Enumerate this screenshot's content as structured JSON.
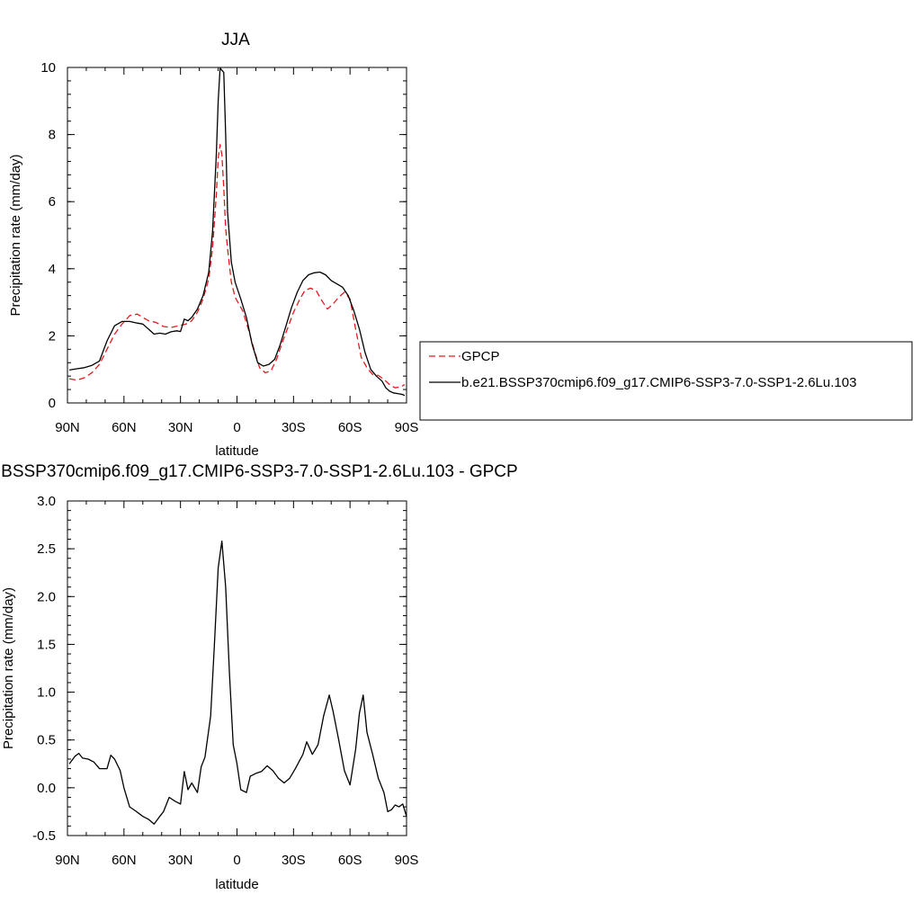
{
  "chart_data": [
    {
      "type": "line",
      "title": "JJA",
      "xlabel": "latitude",
      "ylabel": "Precipitation rate (mm/day)",
      "xlim": [
        90,
        -90
      ],
      "ylim": [
        0,
        10
      ],
      "x_ticks": [
        90,
        60,
        30,
        0,
        -30,
        -60,
        -90
      ],
      "x_tick_labels": [
        "90N",
        "60N",
        "30N",
        "0",
        "30S",
        "60S",
        "90S"
      ],
      "y_ticks": [
        0,
        2,
        4,
        6,
        8,
        10
      ],
      "y_tick_labels": [
        "0",
        "2",
        "4",
        "6",
        "8",
        "10"
      ],
      "legend_position": "right",
      "series": [
        {
          "name": "GPCP",
          "color": "#e41a1c",
          "style": "dashed",
          "points": [
            [
              89,
              0.72
            ],
            [
              85,
              0.68
            ],
            [
              81,
              0.75
            ],
            [
              77,
              0.9
            ],
            [
              73,
              1.15
            ],
            [
              69,
              1.6
            ],
            [
              65,
              2.05
            ],
            [
              61,
              2.35
            ],
            [
              57,
              2.6
            ],
            [
              53,
              2.65
            ],
            [
              50,
              2.55
            ],
            [
              47,
              2.45
            ],
            [
              43,
              2.4
            ],
            [
              39,
              2.28
            ],
            [
              35,
              2.25
            ],
            [
              31,
              2.3
            ],
            [
              27,
              2.35
            ],
            [
              24,
              2.45
            ],
            [
              21,
              2.7
            ],
            [
              18,
              3.1
            ],
            [
              15,
              3.7
            ],
            [
              13,
              4.6
            ],
            [
              11,
              6.2
            ],
            [
              10,
              7.3
            ],
            [
              9,
              7.7
            ],
            [
              8,
              7.4
            ],
            [
              7,
              6.4
            ],
            [
              6,
              5.2
            ],
            [
              5,
              4.6
            ],
            [
              3,
              3.6
            ],
            [
              1,
              3.15
            ],
            [
              -1,
              2.95
            ],
            [
              -3,
              2.75
            ],
            [
              -6,
              2.2
            ],
            [
              -9,
              1.6
            ],
            [
              -12,
              1.05
            ],
            [
              -15,
              0.9
            ],
            [
              -18,
              0.95
            ],
            [
              -21,
              1.3
            ],
            [
              -24,
              1.8
            ],
            [
              -27,
              2.25
            ],
            [
              -30,
              2.7
            ],
            [
              -33,
              3.05
            ],
            [
              -36,
              3.35
            ],
            [
              -39,
              3.42
            ],
            [
              -42,
              3.35
            ],
            [
              -45,
              3.05
            ],
            [
              -48,
              2.8
            ],
            [
              -51,
              2.95
            ],
            [
              -54,
              3.15
            ],
            [
              -57,
              3.3
            ],
            [
              -60,
              3.1
            ],
            [
              -63,
              2.2
            ],
            [
              -66,
              1.35
            ],
            [
              -69,
              1.05
            ],
            [
              -72,
              0.85
            ],
            [
              -75,
              0.82
            ],
            [
              -78,
              0.7
            ],
            [
              -81,
              0.55
            ],
            [
              -84,
              0.45
            ],
            [
              -87,
              0.48
            ],
            [
              -89,
              0.55
            ]
          ]
        },
        {
          "name": "b.e21.BSSP370cmip6.f09_g17.CMIP6-SSP3-7.0-SSP1-2.6Lu.103",
          "color": "#000000",
          "style": "solid",
          "points": [
            [
              89,
              0.98
            ],
            [
              85,
              1.02
            ],
            [
              81,
              1.05
            ],
            [
              77,
              1.12
            ],
            [
              73,
              1.25
            ],
            [
              69,
              1.85
            ],
            [
              65,
              2.3
            ],
            [
              61,
              2.43
            ],
            [
              57,
              2.43
            ],
            [
              53,
              2.38
            ],
            [
              50,
              2.35
            ],
            [
              47,
              2.2
            ],
            [
              44,
              2.05
            ],
            [
              41,
              2.08
            ],
            [
              38,
              2.05
            ],
            [
              35,
              2.12
            ],
            [
              32,
              2.15
            ],
            [
              30,
              2.13
            ],
            [
              28,
              2.5
            ],
            [
              26,
              2.45
            ],
            [
              24,
              2.55
            ],
            [
              21,
              2.8
            ],
            [
              18,
              3.2
            ],
            [
              15,
              3.9
            ],
            [
              13,
              5.1
            ],
            [
              11,
              7.4
            ],
            [
              10,
              9.0
            ],
            [
              9,
              9.98
            ],
            [
              7,
              9.85
            ],
            [
              6,
              8.0
            ],
            [
              5,
              5.7
            ],
            [
              3,
              4.2
            ],
            [
              1,
              3.6
            ],
            [
              -2,
              3.1
            ],
            [
              -5,
              2.55
            ],
            [
              -8,
              1.75
            ],
            [
              -11,
              1.2
            ],
            [
              -14,
              1.1
            ],
            [
              -17,
              1.15
            ],
            [
              -20,
              1.3
            ],
            [
              -23,
              1.75
            ],
            [
              -26,
              2.3
            ],
            [
              -29,
              2.85
            ],
            [
              -32,
              3.3
            ],
            [
              -35,
              3.65
            ],
            [
              -38,
              3.82
            ],
            [
              -41,
              3.88
            ],
            [
              -44,
              3.9
            ],
            [
              -47,
              3.82
            ],
            [
              -50,
              3.65
            ],
            [
              -53,
              3.55
            ],
            [
              -56,
              3.45
            ],
            [
              -59,
              3.2
            ],
            [
              -62,
              2.75
            ],
            [
              -65,
              2.2
            ],
            [
              -68,
              1.5
            ],
            [
              -71,
              1.0
            ],
            [
              -74,
              0.8
            ],
            [
              -77,
              0.65
            ],
            [
              -79,
              0.45
            ],
            [
              -81,
              0.35
            ],
            [
              -83,
              0.3
            ],
            [
              -86,
              0.27
            ],
            [
              -88,
              0.25
            ],
            [
              -89,
              0.22
            ]
          ]
        }
      ]
    },
    {
      "type": "line",
      "title": "b.e21.BSSP370cmip6.f09_g17.CMIP6-SSP3-7.0-SSP1-2.6Lu.103 - GPCP",
      "xlabel": "latitude",
      "ylabel": "Precipitation rate (mm/day)",
      "xlim": [
        90,
        -90
      ],
      "ylim": [
        -0.5,
        3.0
      ],
      "x_ticks": [
        90,
        60,
        30,
        0,
        -30,
        -60,
        -90
      ],
      "x_tick_labels": [
        "90N",
        "60N",
        "30N",
        "0",
        "30S",
        "60S",
        "90S"
      ],
      "y_ticks": [
        -0.5,
        0.0,
        0.5,
        1.0,
        1.5,
        2.0,
        2.5,
        3.0
      ],
      "y_tick_labels": [
        "-0.5",
        "0.0",
        "0.5",
        "1.0",
        "1.5",
        "2.0",
        "2.5",
        "3.0"
      ],
      "series": [
        {
          "color": "#000000",
          "style": "solid",
          "points": [
            [
              89,
              0.25
            ],
            [
              86,
              0.33
            ],
            [
              84,
              0.36
            ],
            [
              82,
              0.31
            ],
            [
              79,
              0.3
            ],
            [
              76,
              0.27
            ],
            [
              73,
              0.2
            ],
            [
              69,
              0.2
            ],
            [
              67,
              0.34
            ],
            [
              65,
              0.3
            ],
            [
              62,
              0.18
            ],
            [
              60,
              0.0
            ],
            [
              57,
              -0.2
            ],
            [
              54,
              -0.24
            ],
            [
              50,
              -0.3
            ],
            [
              47,
              -0.33
            ],
            [
              44,
              -0.38
            ],
            [
              41,
              -0.3
            ],
            [
              39,
              -0.25
            ],
            [
              36,
              -0.1
            ],
            [
              33,
              -0.14
            ],
            [
              30,
              -0.17
            ],
            [
              28,
              0.17
            ],
            [
              26,
              -0.02
            ],
            [
              24,
              0.05
            ],
            [
              21,
              -0.05
            ],
            [
              19,
              0.22
            ],
            [
              17,
              0.32
            ],
            [
              14,
              0.75
            ],
            [
              12,
              1.5
            ],
            [
              10,
              2.3
            ],
            [
              8,
              2.58
            ],
            [
              6,
              2.1
            ],
            [
              4,
              1.2
            ],
            [
              2,
              0.45
            ],
            [
              0,
              0.25
            ],
            [
              -2,
              -0.02
            ],
            [
              -5,
              -0.05
            ],
            [
              -7,
              0.12
            ],
            [
              -10,
              0.15
            ],
            [
              -13,
              0.17
            ],
            [
              -16,
              0.23
            ],
            [
              -19,
              0.18
            ],
            [
              -22,
              0.1
            ],
            [
              -25,
              0.05
            ],
            [
              -28,
              0.1
            ],
            [
              -31,
              0.2
            ],
            [
              -35,
              0.35
            ],
            [
              -37,
              0.48
            ],
            [
              -40,
              0.35
            ],
            [
              -43,
              0.45
            ],
            [
              -46,
              0.75
            ],
            [
              -49,
              0.97
            ],
            [
              -51,
              0.8
            ],
            [
              -54,
              0.5
            ],
            [
              -57,
              0.18
            ],
            [
              -60,
              0.03
            ],
            [
              -63,
              0.4
            ],
            [
              -65,
              0.78
            ],
            [
              -67,
              0.97
            ],
            [
              -69,
              0.58
            ],
            [
              -72,
              0.35
            ],
            [
              -75,
              0.1
            ],
            [
              -78,
              -0.05
            ],
            [
              -80,
              -0.25
            ],
            [
              -82,
              -0.23
            ],
            [
              -84,
              -0.18
            ],
            [
              -86,
              -0.2
            ],
            [
              -88,
              -0.17
            ],
            [
              -90,
              -0.3
            ]
          ]
        }
      ]
    }
  ]
}
